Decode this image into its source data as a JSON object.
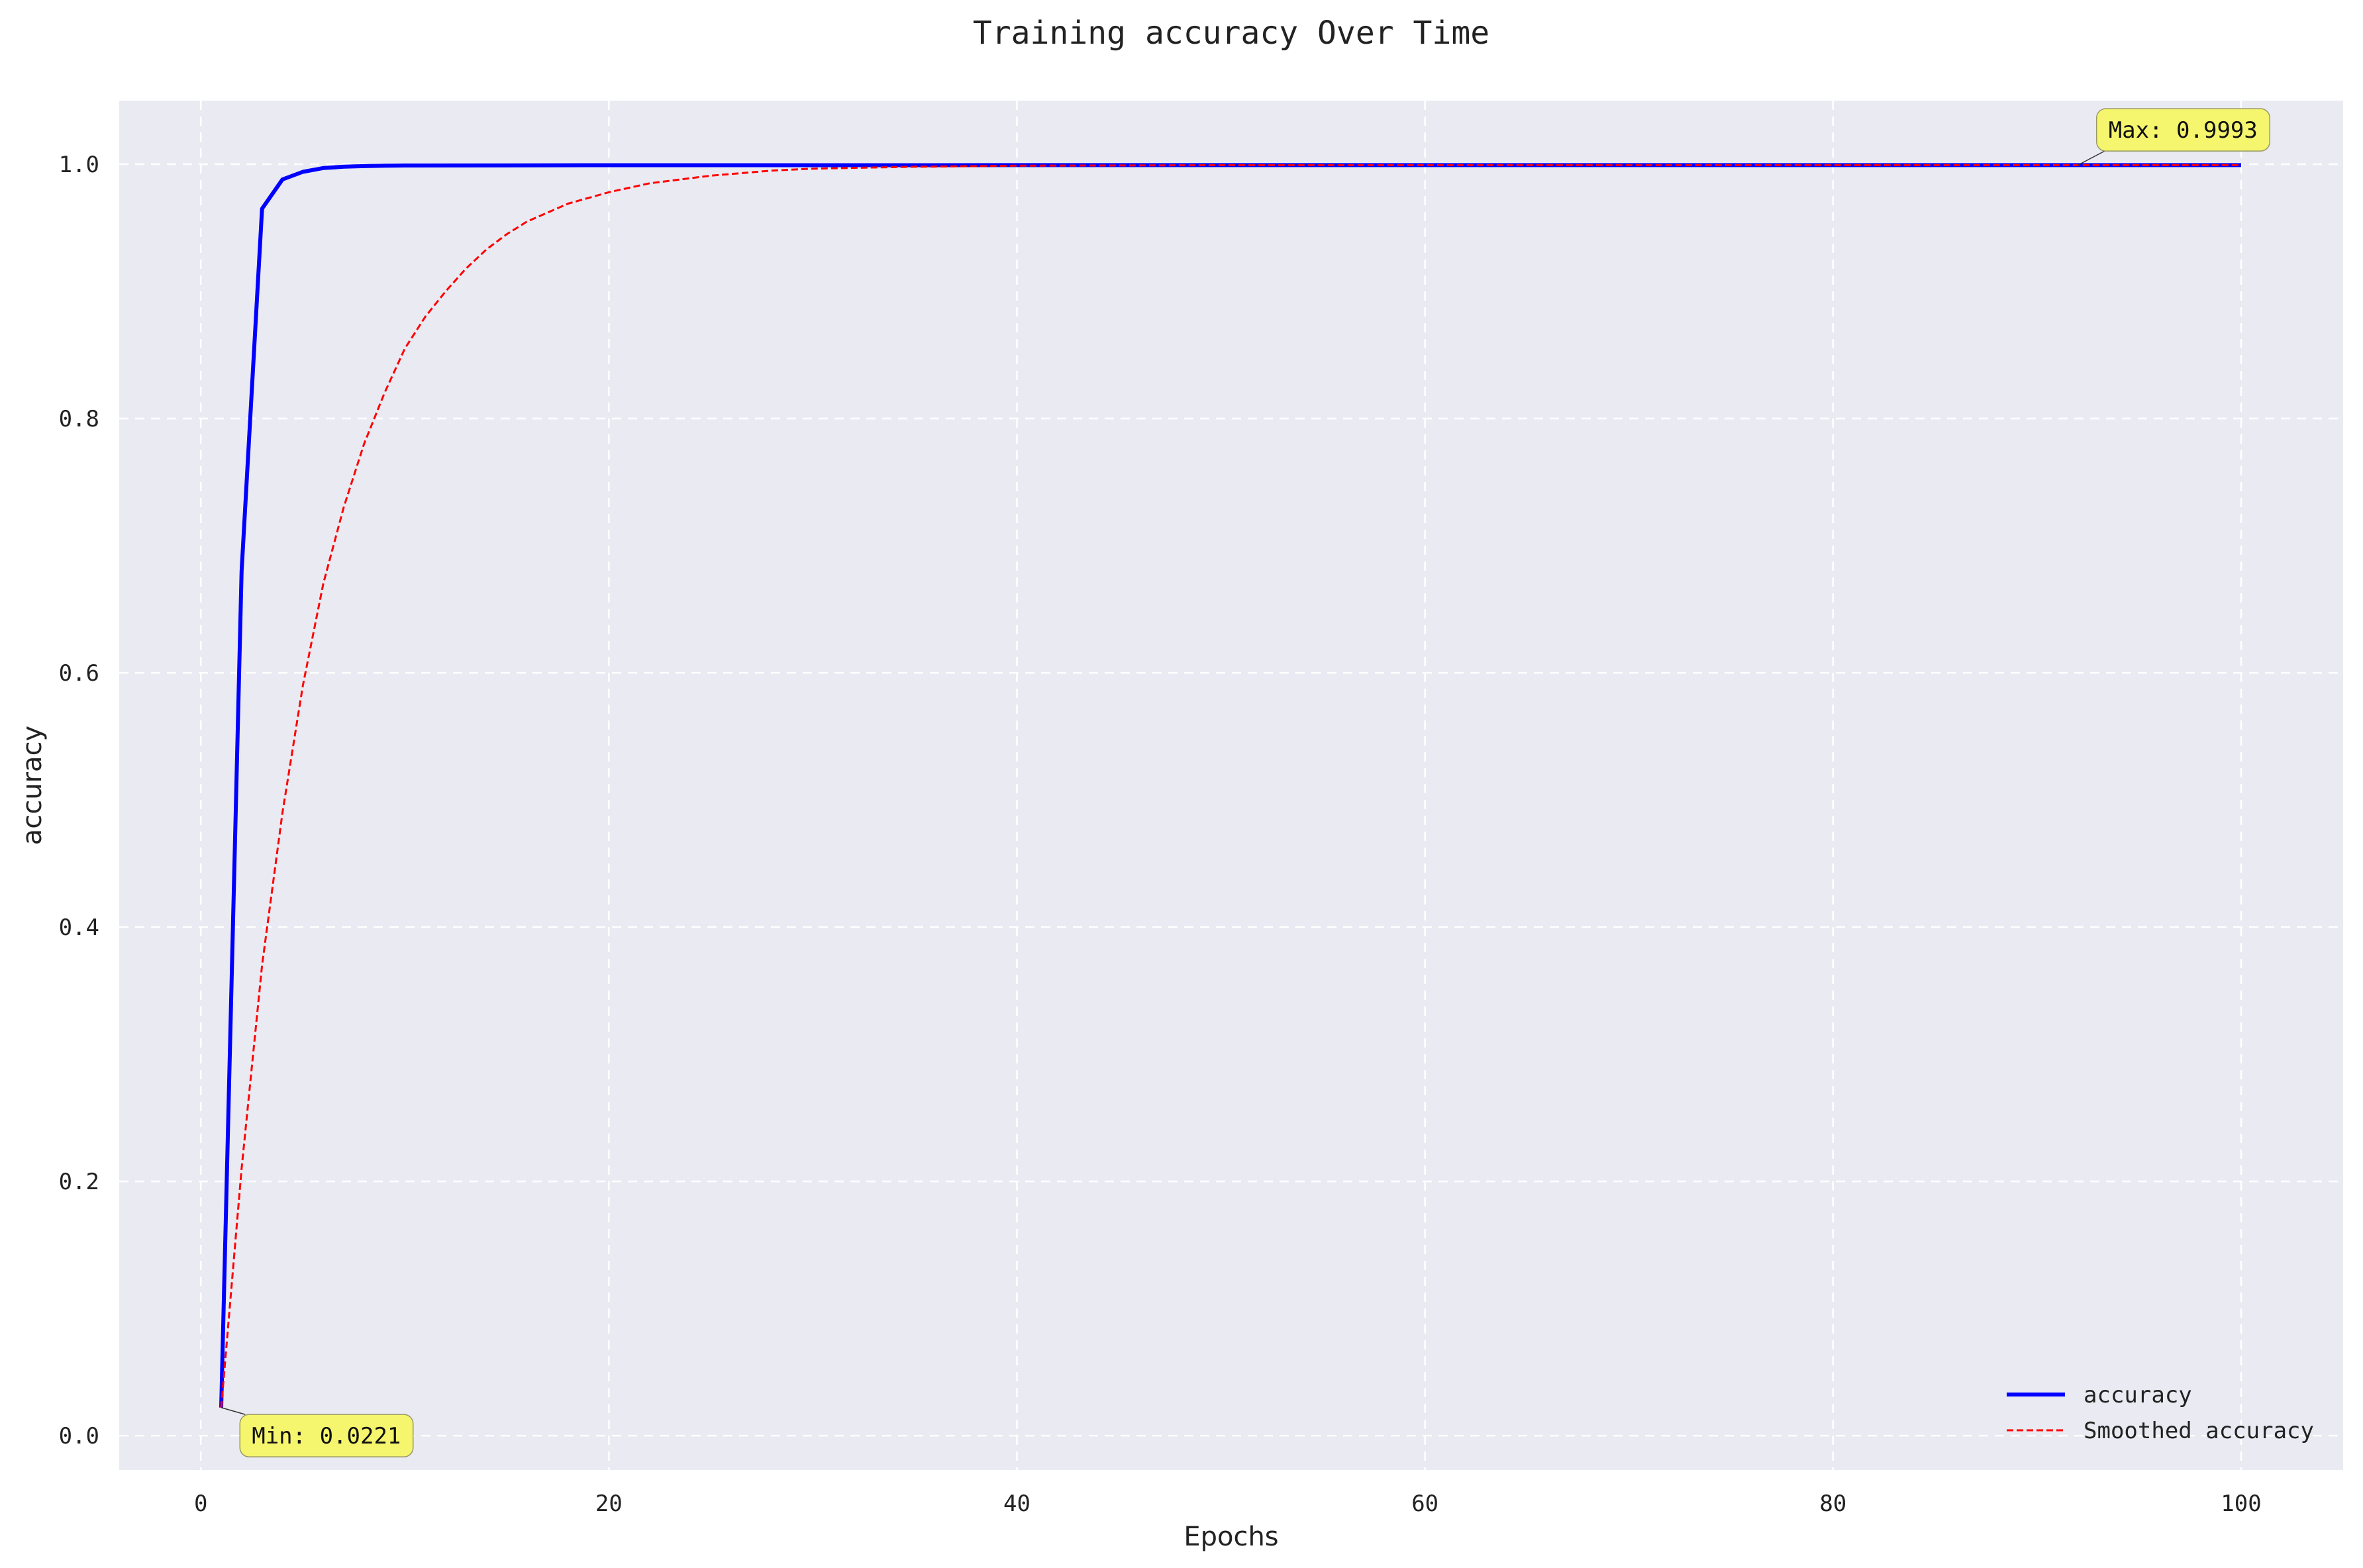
{
  "chart_data": {
    "type": "line",
    "title": "Training accuracy Over Time",
    "xlabel": "Epochs",
    "ylabel": "accuracy",
    "xlim": [
      -4,
      105
    ],
    "ylim": [
      -0.027,
      1.05
    ],
    "xticks": [
      0,
      20,
      40,
      60,
      80,
      100
    ],
    "yticks": [
      0.0,
      0.2,
      0.4,
      0.6,
      0.8,
      1.0
    ],
    "xtick_labels": [
      "0",
      "20",
      "40",
      "60",
      "80",
      "100"
    ],
    "ytick_labels": [
      "0.0",
      "0.2",
      "0.4",
      "0.6",
      "0.8",
      "1.0"
    ],
    "grid": true,
    "legend_position": "bottom-right",
    "plot_background": "#eaeaf2",
    "series": [
      {
        "name": "accuracy",
        "color": "#0000ff",
        "style": "solid",
        "x": [
          1,
          2,
          3,
          4,
          5,
          6,
          7,
          8,
          9,
          10,
          15,
          20,
          30,
          40,
          50,
          60,
          70,
          80,
          90,
          100
        ],
        "y": [
          0.0221,
          0.68,
          0.965,
          0.988,
          0.994,
          0.997,
          0.998,
          0.9985,
          0.9988,
          0.999,
          0.9991,
          0.9992,
          0.9992,
          0.9993,
          0.9993,
          0.9993,
          0.9993,
          0.9993,
          0.9993,
          0.9993
        ]
      },
      {
        "name": "Smoothed accuracy",
        "color": "#ff0000",
        "style": "dashed",
        "x": [
          1,
          2,
          3,
          4,
          5,
          6,
          7,
          8,
          9,
          10,
          11,
          12,
          13,
          14,
          15,
          16,
          18,
          20,
          22,
          25,
          28,
          30,
          35,
          40,
          50,
          60,
          70,
          80,
          90,
          100
        ],
        "y": [
          0.0221,
          0.21,
          0.37,
          0.49,
          0.59,
          0.67,
          0.73,
          0.78,
          0.82,
          0.855,
          0.88,
          0.9,
          0.918,
          0.933,
          0.945,
          0.955,
          0.969,
          0.978,
          0.985,
          0.991,
          0.995,
          0.9965,
          0.998,
          0.9988,
          0.9992,
          0.9993,
          0.9993,
          0.9993,
          0.9993,
          0.9993
        ]
      }
    ],
    "annotations": [
      {
        "name": "max",
        "text": "Max: 0.9993",
        "x": 92,
        "y": 0.9993,
        "text_x": 93.5,
        "text_y": 1.027
      },
      {
        "name": "min",
        "text": "Min: 0.0221",
        "x": 1,
        "y": 0.0221,
        "text_x": 2.5,
        "text_y": 0.0
      }
    ],
    "annotation_box_color": "#f5f56e"
  }
}
